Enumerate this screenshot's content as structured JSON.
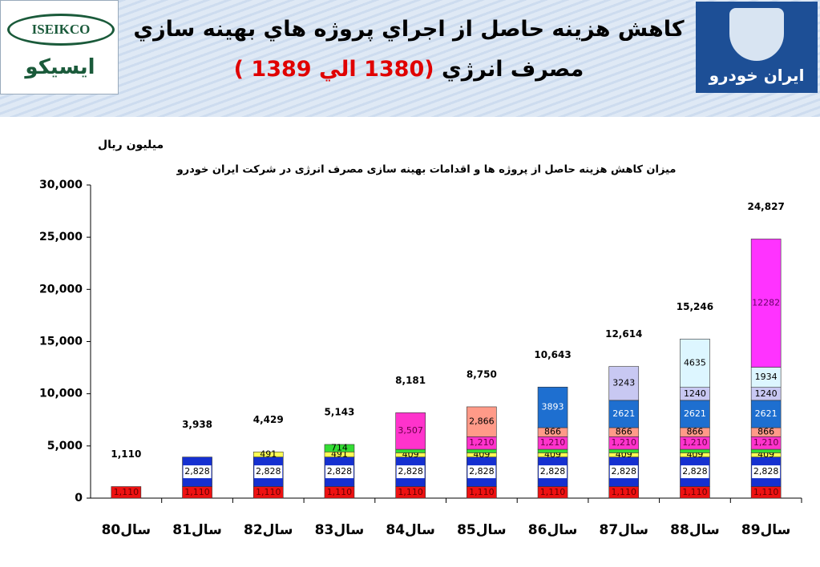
{
  "header": {
    "title_line1": "کاهش هزينه حاصل از اجراي پروژه هاي بهينه سازي",
    "title_line2": "مصرف انرژي",
    "title_range": "(1380 الي 1389 )",
    "logo_left_en": "ISEIKCO",
    "logo_left_fa": "ایسیکو",
    "logo_right_fa": "ایران خودرو"
  },
  "chart_data": {
    "type": "bar",
    "stacked": true,
    "title": "میزان کاهش هزینه حاصل از پروژه ها و اقدامات بهینه سازی مصرف انرژی در شرکت ایران خودرو",
    "y_label": "میلیون ریال",
    "categories": [
      "سال80",
      "سال81",
      "سال82",
      "سال83",
      "سال84",
      "سال85",
      "سال86",
      "سال87",
      "سال88",
      "سال89"
    ],
    "ylim": [
      0,
      30000
    ],
    "yticks": [
      {
        "value": 0,
        "label": "0"
      },
      {
        "value": 5000,
        "label": "5,000"
      },
      {
        "value": 10000,
        "label": "10,000"
      },
      {
        "value": 15000,
        "label": "15,000"
      },
      {
        "value": 20000,
        "label": "20,000"
      },
      {
        "value": 25000,
        "label": "25,000"
      },
      {
        "value": 30000,
        "label": "30,000"
      }
    ],
    "totals": {
      "values": [
        1110,
        3938,
        4429,
        5143,
        8181,
        8750,
        10643,
        12614,
        15246,
        24827
      ],
      "value_labels": [
        "1,110",
        "3,938",
        "4,429",
        "5,143",
        "8,181",
        "8,750",
        "10,643",
        "12,614",
        "15,246",
        "24,827"
      ]
    },
    "series": [
      {
        "color": "#ee1111",
        "label_color": "#660000",
        "values": [
          1110,
          1110,
          1110,
          1110,
          1110,
          1110,
          1110,
          1110,
          1110,
          1110
        ],
        "value_labels": [
          "1,110",
          "1,110",
          "1,110",
          "1,110",
          "1,110",
          "1,110",
          "1,110",
          "1,110",
          "1,110",
          "1,110"
        ]
      },
      {
        "color": "#1530d0",
        "label_color": "#000000",
        "label_background": "#ffffff",
        "values": [
          null,
          2828,
          2828,
          2828,
          2828,
          2828,
          2828,
          2828,
          2828,
          2828
        ],
        "value_labels": [
          null,
          "2,828",
          "2,828",
          "2,828",
          "2,828",
          "2,828",
          "2,828",
          "2,828",
          "2,828",
          "2,828"
        ]
      },
      {
        "color": "#ffff55",
        "label_color": "#000000",
        "values": [
          null,
          null,
          491,
          491,
          409,
          409,
          409,
          409,
          409,
          409
        ],
        "value_labels": [
          null,
          null,
          "491",
          "491",
          "409",
          "409",
          "409",
          "409",
          "409",
          "409"
        ]
      },
      {
        "color": "#33dd33",
        "label_color": "#000000",
        "values": [
          null,
          null,
          null,
          714,
          327,
          327,
          327,
          327,
          327,
          327
        ],
        "value_labels": [
          null,
          null,
          null,
          "714",
          null,
          null,
          null,
          null,
          null,
          null
        ]
      },
      {
        "color": "#ff33cc",
        "label_color": "#660044",
        "values": [
          null,
          null,
          null,
          null,
          3507,
          1210,
          1210,
          1210,
          1210,
          1210
        ],
        "value_labels": [
          null,
          null,
          null,
          null,
          "3,507",
          "1,210",
          "1,210",
          "1,210",
          "1,210",
          "1,210"
        ]
      },
      {
        "color": "#ff9a88",
        "label_color": "#000000",
        "values": [
          null,
          null,
          null,
          null,
          null,
          2866,
          866,
          866,
          866,
          866
        ],
        "value_labels": [
          null,
          null,
          null,
          null,
          null,
          "2,866",
          "866",
          "866",
          "866",
          "866"
        ]
      },
      {
        "color": "#1e6fd0",
        "label_color": "#ffffff",
        "values": [
          null,
          null,
          null,
          null,
          null,
          null,
          3893,
          2621,
          2621,
          2621
        ],
        "value_labels": [
          null,
          null,
          null,
          null,
          null,
          null,
          "3893",
          "2621",
          "2621",
          "2621"
        ]
      },
      {
        "color": "#c8c8f2",
        "label_color": "#000000",
        "values": [
          null,
          null,
          null,
          null,
          null,
          null,
          null,
          3243,
          1240,
          1240
        ],
        "value_labels": [
          null,
          null,
          null,
          null,
          null,
          null,
          null,
          "3243",
          "1240",
          "1240"
        ]
      },
      {
        "color": "#ddf6ff",
        "label_color": "#000000",
        "values": [
          null,
          null,
          null,
          null,
          null,
          null,
          null,
          null,
          4635,
          1934
        ],
        "value_labels": [
          null,
          null,
          null,
          null,
          null,
          null,
          null,
          null,
          "4635",
          "1934"
        ]
      },
      {
        "color": "#ff33ff",
        "label_color": "#660066",
        "values": [
          null,
          null,
          null,
          null,
          null,
          null,
          null,
          null,
          null,
          12282
        ],
        "value_labels": [
          null,
          null,
          null,
          null,
          null,
          null,
          null,
          null,
          null,
          "12282"
        ]
      }
    ]
  }
}
